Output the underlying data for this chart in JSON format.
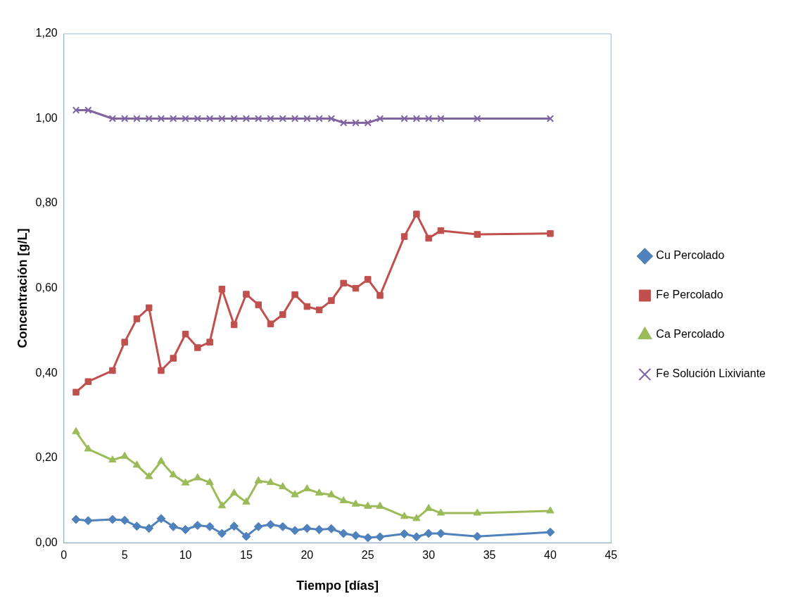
{
  "chart_data": {
    "type": "line",
    "xlabel": "Tiempo [días]",
    "ylabel": "Concentración [g/L]",
    "x": [
      1,
      2,
      4,
      5,
      6,
      7,
      8,
      9,
      10,
      11,
      12,
      13,
      14,
      15,
      16,
      17,
      18,
      19,
      20,
      21,
      22,
      23,
      24,
      25,
      26,
      28,
      29,
      30,
      31,
      34,
      40
    ],
    "series": [
      {
        "name": "Cu Percolado",
        "color": "#4f81bd",
        "marker": "diamond",
        "values": [
          0.055,
          0.052,
          0.055,
          0.053,
          0.039,
          0.034,
          0.057,
          0.038,
          0.031,
          0.041,
          0.038,
          0.022,
          0.039,
          0.015,
          0.038,
          0.043,
          0.038,
          0.029,
          0.034,
          0.031,
          0.033,
          0.022,
          0.017,
          0.012,
          0.014,
          0.021,
          0.014,
          0.022,
          0.022,
          0.015,
          0.025
        ]
      },
      {
        "name": "Fe Percolado",
        "color": "#c0504d",
        "marker": "square",
        "values": [
          0.355,
          0.38,
          0.406,
          0.473,
          0.528,
          0.554,
          0.406,
          0.435,
          0.492,
          0.46,
          0.473,
          0.598,
          0.514,
          0.586,
          0.561,
          0.516,
          0.538,
          0.585,
          0.557,
          0.549,
          0.571,
          0.612,
          0.6,
          0.621,
          0.583,
          0.722,
          0.775,
          0.718,
          0.736,
          0.727,
          0.729
        ]
      },
      {
        "name": "Ca Percolado",
        "color": "#9bbb59",
        "marker": "triangle",
        "values": [
          0.262,
          0.221,
          0.195,
          0.204,
          0.183,
          0.156,
          0.192,
          0.16,
          0.141,
          0.153,
          0.142,
          0.087,
          0.117,
          0.096,
          0.146,
          0.142,
          0.132,
          0.113,
          0.127,
          0.117,
          0.113,
          0.099,
          0.091,
          0.086,
          0.086,
          0.062,
          0.057,
          0.081,
          0.07,
          0.07,
          0.075
        ]
      },
      {
        "name": "Fe Solución Lixiviante",
        "color": "#8064a2",
        "marker": "cross",
        "values": [
          1.02,
          1.02,
          1.0,
          1.0,
          1.0,
          1.0,
          1.0,
          1.0,
          1.0,
          1.0,
          1.0,
          1.0,
          1.0,
          1.0,
          1.0,
          1.0,
          1.0,
          1.0,
          1.0,
          1.0,
          1.0,
          0.99,
          0.99,
          0.99,
          1.0,
          1.0,
          1.0,
          1.0,
          1.0,
          1.0,
          1.0
        ]
      }
    ],
    "xlim": [
      0,
      45
    ],
    "xticks": [
      0,
      5,
      10,
      15,
      20,
      25,
      30,
      35,
      40,
      45
    ],
    "ylim": [
      0,
      1.2
    ],
    "yticks": [
      {
        "value": 0,
        "label": "0,00"
      },
      {
        "value": 0.2,
        "label": "0,20"
      },
      {
        "value": 0.4,
        "label": "0,40"
      },
      {
        "value": 0.6,
        "label": "0,60"
      },
      {
        "value": 0.8,
        "label": "0,80"
      },
      {
        "value": 1.0,
        "label": "1,00"
      },
      {
        "value": 1.2,
        "label": "1,20"
      }
    ],
    "grid": false,
    "legend": "right",
    "line_style": "solid"
  }
}
